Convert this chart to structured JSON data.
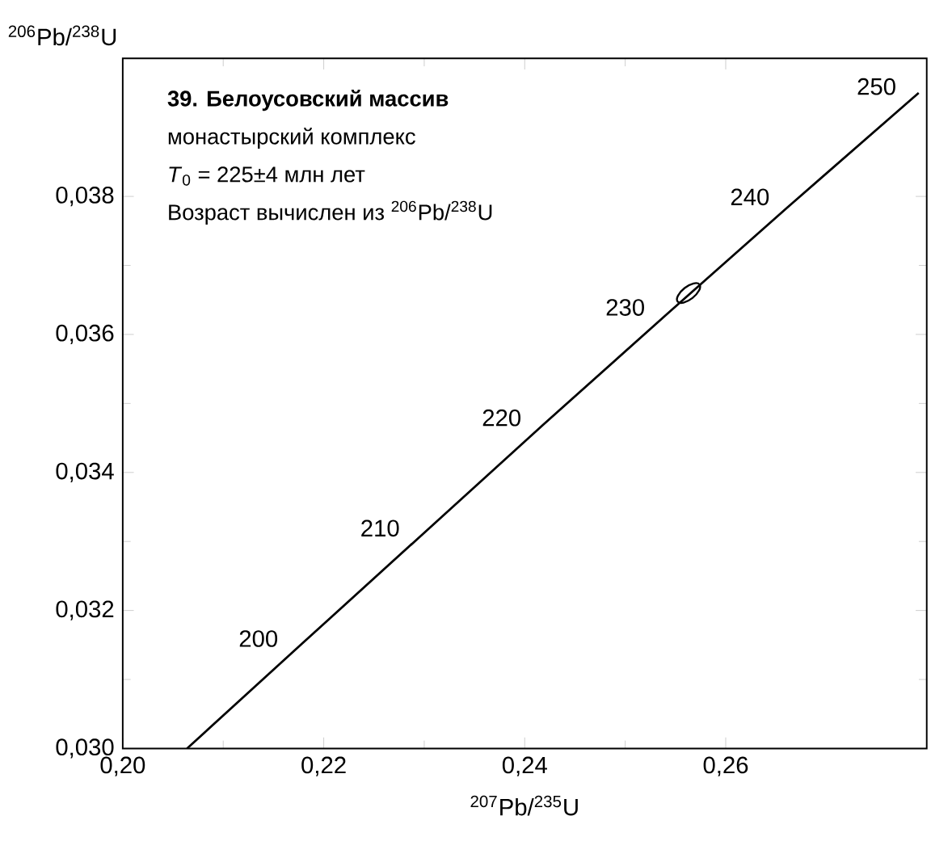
{
  "chart_data": {
    "type": "line",
    "title": "39. Белоусовский массив",
    "xlabel": "$^{207}$Pb/$^{235}$U",
    "ylabel": "$^{206}$Pb/$^{238}$U",
    "annotations": [
      "монастырский комплекс",
      "*T*$_{0}$ = 225±4 млн лет",
      "Возраст вычислен из $^{206}$Pb/$^{238}$U",
      {
        "text": "200",
        "x": 0.2177,
        "y": 0.0315
      },
      {
        "text": "210",
        "x": 0.2298,
        "y": 0.0331
      },
      {
        "text": "220",
        "x": 0.2419,
        "y": 0.0347
      },
      {
        "text": "230",
        "x": 0.2542,
        "y": 0.0363
      },
      {
        "text": "240",
        "x": 0.2666,
        "y": 0.0379
      },
      {
        "text": "250",
        "x": 0.2792,
        "y": 0.0395
      }
    ],
    "series": [
      {
        "color": "#000000",
        "marker": "none",
        "x": [
          0.2064,
          0.2177,
          0.2298,
          0.2419,
          0.2542,
          0.2666,
          0.2792
        ],
        "values": [
          0.03,
          0.0315,
          0.0331,
          0.0347,
          0.0363,
          0.0379,
          0.0395
        ]
      },
      {
        "type": "scatter",
        "color": "#000000",
        "marker": "circle",
        "x": [
          0.2563
        ],
        "values": [
          0.0366
        ]
      }
    ],
    "xlim": [
      0.2,
      0.28
    ],
    "ylim": [
      0.03,
      0.04
    ],
    "xticks": [
      {
        "value": 0.2,
        "label": "0,20"
      },
      {
        "value": 0.22,
        "label": "0,22"
      },
      {
        "value": 0.24,
        "label": "0,24"
      },
      {
        "value": 0.26,
        "label": "0,26"
      }
    ],
    "yticks": [
      {
        "value": 0.03,
        "label": "0,030"
      },
      {
        "value": 0.032,
        "label": "0,032"
      },
      {
        "value": 0.034,
        "label": "0,034"
      },
      {
        "value": 0.036,
        "label": "0,036"
      },
      {
        "value": 0.038,
        "label": "0,038"
      }
    ]
  }
}
